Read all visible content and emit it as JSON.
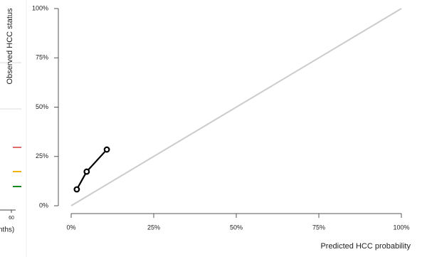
{
  "chart_data": {
    "type": "line",
    "xlabel": "Predicted HCC probability",
    "ylabel": "Observed HCC status",
    "x": [
      1.7,
      4.7,
      10.8
    ],
    "values": [
      8.3,
      17.3,
      28.5
    ],
    "color": "#000000",
    "reference_line": {
      "x": [
        0,
        100
      ],
      "y": [
        0,
        100
      ],
      "color": "#cccccc"
    },
    "xlim": [
      0,
      100
    ],
    "ylim": [
      0,
      100
    ],
    "xticks": [
      {
        "value": 0,
        "label": "0%"
      },
      {
        "value": 25,
        "label": "25%"
      },
      {
        "value": 50,
        "label": "50%"
      },
      {
        "value": 75,
        "label": "75%"
      },
      {
        "value": 100,
        "label": "100%"
      }
    ],
    "yticks": [
      {
        "value": 0,
        "label": "0%"
      },
      {
        "value": 25,
        "label": "25%"
      },
      {
        "value": 50,
        "label": "50%"
      },
      {
        "value": 75,
        "label": "75%"
      },
      {
        "value": 100,
        "label": "100%"
      }
    ]
  },
  "partial_panel": {
    "tick": "60",
    "axis_label_fragment": "nths)"
  }
}
